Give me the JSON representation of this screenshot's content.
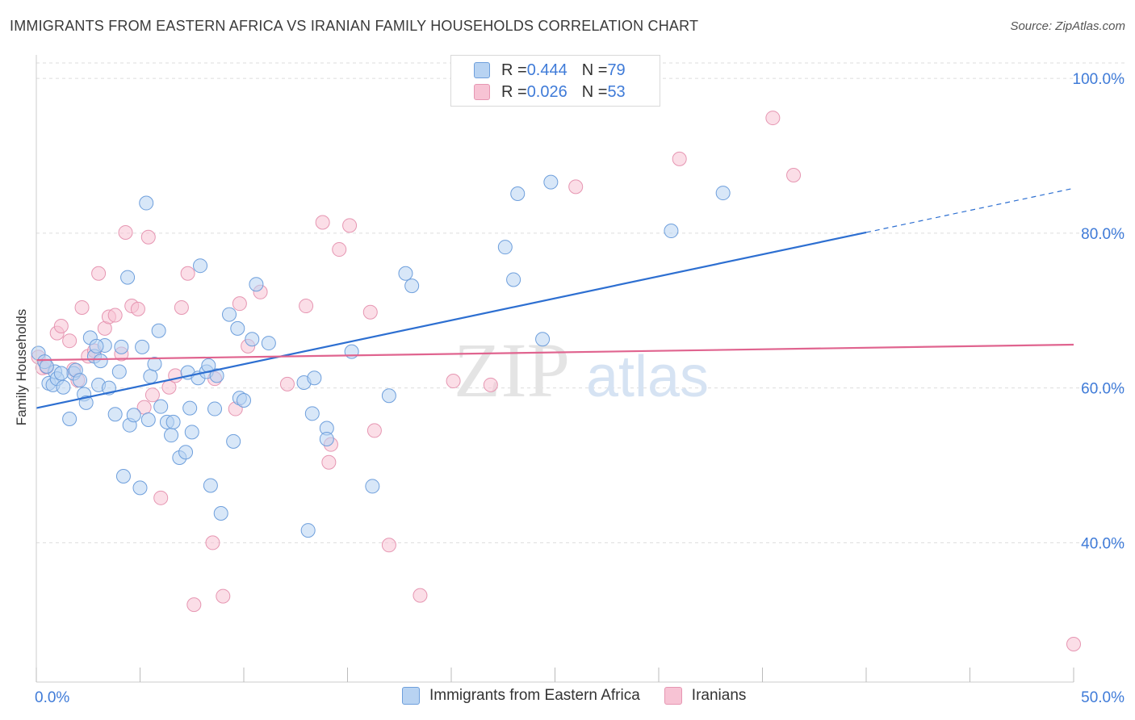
{
  "title": "IMMIGRANTS FROM EASTERN AFRICA VS IRANIAN FAMILY HOUSEHOLDS CORRELATION CHART",
  "source": "Source: ZipAtlas.com",
  "watermark": {
    "zip": "ZIP",
    "atlas": "atlas"
  },
  "legend": {
    "blue": {
      "r_label": "R = ",
      "r_value": "0.444",
      "n_label": "N = ",
      "n_value": "79"
    },
    "pink": {
      "r_label": "R = ",
      "r_value": "0.026",
      "n_label": "N = ",
      "n_value": "53"
    }
  },
  "colors": {
    "blue_fill": "#b8d3f2",
    "blue_stroke": "#6e9fdc",
    "blue_line": "#2d6fd1",
    "pink_fill": "#f7c3d4",
    "pink_stroke": "#e696b2",
    "pink_line": "#e0648f",
    "axis_text": "#3f7bd8",
    "grid": "#dddddd"
  },
  "chart_data": {
    "type": "scatter",
    "title": "IMMIGRANTS FROM EASTERN AFRICA VS IRANIAN FAMILY HOUSEHOLDS CORRELATION CHART",
    "xlabel": "",
    "ylabel": "Family Households",
    "xlim": [
      0,
      50
    ],
    "ylim": [
      22,
      102
    ],
    "x_tick_labels": [
      "0.0%",
      "50.0%"
    ],
    "y_ticks": [
      40,
      60,
      80,
      100
    ],
    "y_tick_labels": [
      "40.0%",
      "60.0%",
      "80.0%",
      "100.0%"
    ],
    "grid": true,
    "legend_position": "top-center",
    "series": [
      {
        "name": "Immigrants from Eastern Africa",
        "color": "#6e9fdc",
        "trend": {
          "x": [
            0,
            40
          ],
          "y": [
            57.4,
            80.1
          ],
          "dashed_to": [
            50,
            85.8
          ]
        },
        "points": [
          [
            0.1,
            64.5
          ],
          [
            0.4,
            63.4
          ],
          [
            0.6,
            60.6
          ],
          [
            0.8,
            60.4
          ],
          [
            0.9,
            62.1
          ],
          [
            1.0,
            61.2
          ],
          [
            1.3,
            60.1
          ],
          [
            1.6,
            56.0
          ],
          [
            1.8,
            61.9
          ],
          [
            1.9,
            62.3
          ],
          [
            2.1,
            61.0
          ],
          [
            2.3,
            59.2
          ],
          [
            2.4,
            58.1
          ],
          [
            2.6,
            66.5
          ],
          [
            2.8,
            64.1
          ],
          [
            3.1,
            63.5
          ],
          [
            3.3,
            65.5
          ],
          [
            3.0,
            60.4
          ],
          [
            3.5,
            60.0
          ],
          [
            3.8,
            56.6
          ],
          [
            4.0,
            62.1
          ],
          [
            4.1,
            65.3
          ],
          [
            4.2,
            48.6
          ],
          [
            4.4,
            74.3
          ],
          [
            4.5,
            55.2
          ],
          [
            4.7,
            56.5
          ],
          [
            5.0,
            47.1
          ],
          [
            5.1,
            65.3
          ],
          [
            5.3,
            83.9
          ],
          [
            5.4,
            55.9
          ],
          [
            5.5,
            61.5
          ],
          [
            5.7,
            63.1
          ],
          [
            5.9,
            67.4
          ],
          [
            6.0,
            57.6
          ],
          [
            6.3,
            55.6
          ],
          [
            6.5,
            53.9
          ],
          [
            6.6,
            55.6
          ],
          [
            6.9,
            51.0
          ],
          [
            7.2,
            51.7
          ],
          [
            7.3,
            62.0
          ],
          [
            7.4,
            57.4
          ],
          [
            7.5,
            54.3
          ],
          [
            7.8,
            61.3
          ],
          [
            7.9,
            75.8
          ],
          [
            8.2,
            62.1
          ],
          [
            8.3,
            62.9
          ],
          [
            8.4,
            47.4
          ],
          [
            8.6,
            57.3
          ],
          [
            8.7,
            61.6
          ],
          [
            8.9,
            43.8
          ],
          [
            9.3,
            69.5
          ],
          [
            9.5,
            53.1
          ],
          [
            9.7,
            67.7
          ],
          [
            9.8,
            58.7
          ],
          [
            10.0,
            58.4
          ],
          [
            10.4,
            66.3
          ],
          [
            10.6,
            73.4
          ],
          [
            11.2,
            65.8
          ],
          [
            12.9,
            60.7
          ],
          [
            13.1,
            41.6
          ],
          [
            13.3,
            56.7
          ],
          [
            13.4,
            61.3
          ],
          [
            14.0,
            54.8
          ],
          [
            14.0,
            53.4
          ],
          [
            15.2,
            64.7
          ],
          [
            16.2,
            47.3
          ],
          [
            17.0,
            59.0
          ],
          [
            17.8,
            74.8
          ],
          [
            18.1,
            73.2
          ],
          [
            22.6,
            78.2
          ],
          [
            23.0,
            74.0
          ],
          [
            23.2,
            85.1
          ],
          [
            24.4,
            66.3
          ],
          [
            24.8,
            86.6
          ],
          [
            30.6,
            80.3
          ],
          [
            33.1,
            85.2
          ],
          [
            1.2,
            61.9
          ],
          [
            2.9,
            65.4
          ],
          [
            0.5,
            62.8
          ]
        ]
      },
      {
        "name": "Iranians",
        "color": "#e696b2",
        "trend": {
          "x": [
            0,
            50
          ],
          "y": [
            63.6,
            65.6
          ]
        },
        "points": [
          [
            0.1,
            64.0
          ],
          [
            0.3,
            62.6
          ],
          [
            0.5,
            62.7
          ],
          [
            1.0,
            67.1
          ],
          [
            1.2,
            68.0
          ],
          [
            1.6,
            66.1
          ],
          [
            1.8,
            62.4
          ],
          [
            2.0,
            61.0
          ],
          [
            2.2,
            70.4
          ],
          [
            2.5,
            64.1
          ],
          [
            2.8,
            64.8
          ],
          [
            3.0,
            74.8
          ],
          [
            3.3,
            67.7
          ],
          [
            3.5,
            69.2
          ],
          [
            3.8,
            69.4
          ],
          [
            4.1,
            64.4
          ],
          [
            4.3,
            80.1
          ],
          [
            4.6,
            70.6
          ],
          [
            4.9,
            70.2
          ],
          [
            5.2,
            57.5
          ],
          [
            5.4,
            79.5
          ],
          [
            5.6,
            59.1
          ],
          [
            6.0,
            45.8
          ],
          [
            6.4,
            60.1
          ],
          [
            6.7,
            61.6
          ],
          [
            7.0,
            70.4
          ],
          [
            7.3,
            74.8
          ],
          [
            7.6,
            32.0
          ],
          [
            8.5,
            40.0
          ],
          [
            8.6,
            61.2
          ],
          [
            9.0,
            33.1
          ],
          [
            9.6,
            57.3
          ],
          [
            9.8,
            70.9
          ],
          [
            10.2,
            65.4
          ],
          [
            10.8,
            72.4
          ],
          [
            12.1,
            60.5
          ],
          [
            13.0,
            70.6
          ],
          [
            13.8,
            81.4
          ],
          [
            14.1,
            50.4
          ],
          [
            14.2,
            52.7
          ],
          [
            14.6,
            77.9
          ],
          [
            15.1,
            81.0
          ],
          [
            16.1,
            69.8
          ],
          [
            16.3,
            54.5
          ],
          [
            17.0,
            39.7
          ],
          [
            18.5,
            33.2
          ],
          [
            20.1,
            60.9
          ],
          [
            21.9,
            60.4
          ],
          [
            26.0,
            86.0
          ],
          [
            31.0,
            89.6
          ],
          [
            35.5,
            94.9
          ],
          [
            36.5,
            87.5
          ],
          [
            50.0,
            26.9
          ]
        ]
      }
    ]
  }
}
